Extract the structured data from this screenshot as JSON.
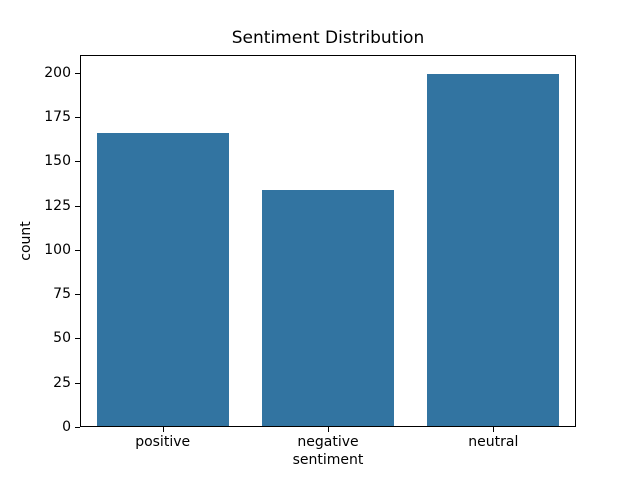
{
  "chart_data": {
    "type": "bar",
    "title": "Sentiment Distribution",
    "xlabel": "sentiment",
    "ylabel": "count",
    "categories": [
      "positive",
      "negative",
      "neutral"
    ],
    "values": [
      166,
      134,
      199
    ],
    "yticks": [
      0,
      25,
      50,
      75,
      100,
      125,
      150,
      175,
      200
    ],
    "ylim": [
      0,
      210
    ],
    "xlim_categories": [
      -0.5,
      2.5
    ],
    "bar_width_fraction": 0.8,
    "bar_color": "#3274a1",
    "background_color": "#ffffff",
    "spine_color": "#000000",
    "text_color": "#000000",
    "grid": "off",
    "legend": "none"
  }
}
